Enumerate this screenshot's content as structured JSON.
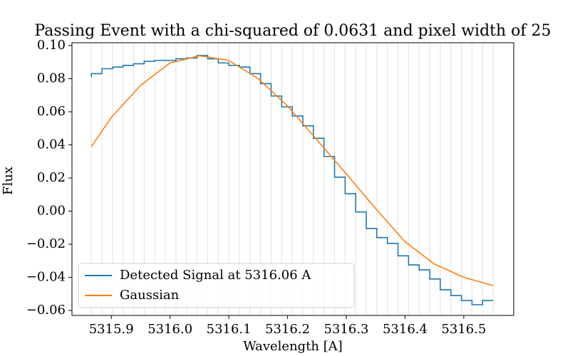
{
  "chart_data": {
    "type": "step-line",
    "title": "Passing Event with a chi-squared of 0.0631 and pixel width of 25",
    "xlabel": "Wavelength [A]",
    "ylabel": "Flux",
    "xlim": [
      5315.833,
      5316.585
    ],
    "ylim": [
      -0.063,
      0.1017
    ],
    "xticks": [
      5315.9,
      {
        "value": 5316.0,
        "label": "5316.0"
      },
      5316.1,
      5316.2,
      5316.3,
      5316.4,
      5316.5
    ],
    "yticks": [
      {
        "value": -0.06,
        "label": "−0.06"
      },
      {
        "value": -0.04,
        "label": "−0.04"
      },
      {
        "value": -0.02,
        "label": "−0.02"
      },
      {
        "value": 0,
        "label": "0.00"
      },
      {
        "value": 0.02,
        "label": "0.02"
      },
      {
        "value": 0.04,
        "label": "0.04"
      },
      {
        "value": 0.06,
        "label": "0.06"
      },
      {
        "value": 0.08,
        "label": "0.08"
      },
      {
        "value": 0.1,
        "label": "0.10"
      }
    ],
    "legend": "lower left",
    "series": [
      {
        "name": "Detected Signal at 5316.06 A",
        "color": "#1f77b4",
        "step": true,
        "x": [
          5315.866,
          5315.884,
          5315.902,
          5315.92,
          5315.938,
          5315.956,
          5315.974,
          5315.992,
          5316.01,
          5316.028,
          5316.046,
          5316.064,
          5316.082,
          5316.1,
          5316.118,
          5316.136,
          5316.154,
          5316.172,
          5316.19,
          5316.208,
          5316.226,
          5316.244,
          5316.262,
          5316.28,
          5316.298,
          5316.316,
          5316.334,
          5316.352,
          5316.37,
          5316.388,
          5316.406,
          5316.424,
          5316.442,
          5316.46,
          5316.478,
          5316.496,
          5316.514,
          5316.532,
          5316.55
        ],
        "values": [
          0.081,
          0.083,
          0.086,
          0.087,
          0.088,
          0.089,
          0.0905,
          0.091,
          0.091,
          0.092,
          0.0925,
          0.094,
          0.092,
          0.0895,
          0.088,
          0.087,
          0.083,
          0.077,
          0.0695,
          0.063,
          0.0575,
          0.0515,
          0.044,
          0.033,
          0.0205,
          0.0105,
          -0.0005,
          -0.0105,
          -0.016,
          -0.0195,
          -0.027,
          -0.0325,
          -0.0355,
          -0.041,
          -0.0475,
          -0.051,
          -0.054,
          -0.0565,
          -0.054
        ]
      },
      {
        "name": "Gaussian",
        "color": "#ff7f0e",
        "step": false,
        "x": [
          5315.866,
          5315.9,
          5315.95,
          5316.0,
          5316.05,
          5316.1,
          5316.15,
          5316.2,
          5316.25,
          5316.3,
          5316.35,
          5316.4,
          5316.45,
          5316.5,
          5316.55
        ],
        "values": [
          0.039,
          0.0566,
          0.076,
          0.0895,
          0.0938,
          0.091,
          0.08,
          0.0635,
          0.043,
          0.0225,
          0.0015,
          -0.0185,
          -0.032,
          -0.04,
          -0.045
        ]
      }
    ]
  }
}
